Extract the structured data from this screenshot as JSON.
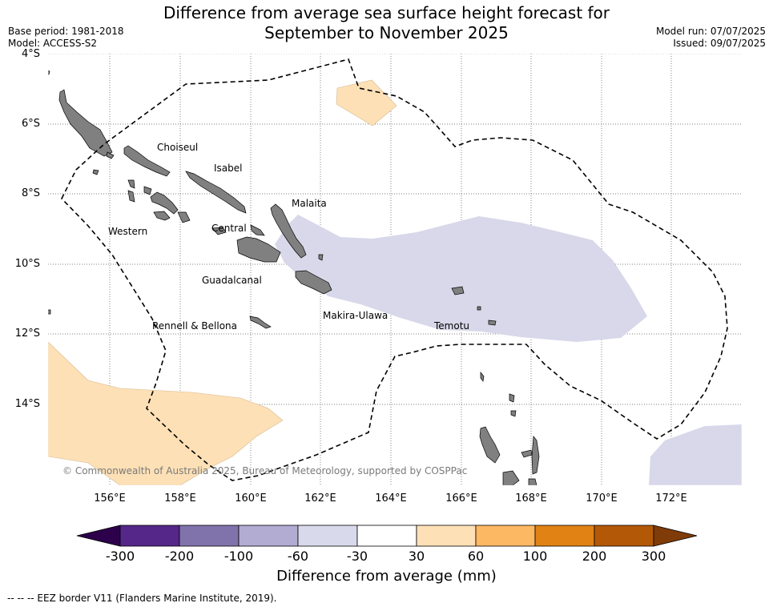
{
  "header": {
    "title_line1": "Difference from average sea surface height forecast for",
    "title_line2": "September to November 2025",
    "base_period": "Base period: 1981-2018",
    "model": "Model: ACCESS-S2",
    "model_run": "Model run: 07/07/2025",
    "issued": "Issued: 09/07/2025"
  },
  "map": {
    "lat_labels": [
      "4°S",
      "6°S",
      "8°S",
      "10°S",
      "12°S",
      "14°S"
    ],
    "lon_labels": [
      "156°E",
      "158°E",
      "160°E",
      "162°E",
      "164°E",
      "166°E",
      "168°E",
      "170°E",
      "172°E"
    ],
    "regions": {
      "choiseul": "Choiseul",
      "isabel": "Isabel",
      "malaita": "Malaita",
      "western": "Western",
      "central": "Central",
      "guadalcanal": "Guadalcanal",
      "makira": "Makira-Ulawa",
      "rennell": "Rennell & Bellona",
      "temotu": "Temotu"
    },
    "copyright": "© Commonwealth of Australia 2025, Bureau of Meteorology, supported by COSPPac",
    "colors": {
      "land": "#808080",
      "low_anomaly": "#d8d8ea",
      "high_anomaly": "#fde0b6"
    }
  },
  "colorbar": {
    "ticks": [
      "-300",
      "-200",
      "-100",
      "-60",
      "-30",
      "30",
      "60",
      "100",
      "200",
      "300"
    ],
    "colors": [
      "#2d004b",
      "#542788",
      "#8073ac",
      "#b2abd2",
      "#d8daeb",
      "#ffffff",
      "#fee0b6",
      "#fdb863",
      "#e08214",
      "#b35806",
      "#7f3b08"
    ],
    "title": "Difference from average (mm)"
  },
  "footer": {
    "eez_note": "--  --  -- EEZ border V11 (Flanders Marine Institute, 2019)."
  }
}
